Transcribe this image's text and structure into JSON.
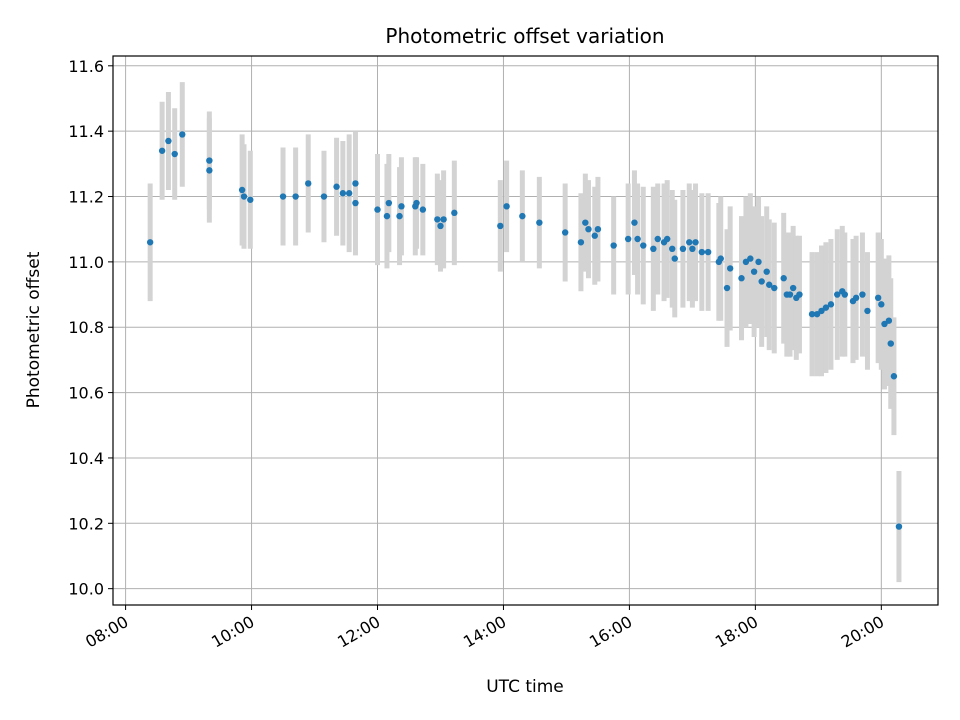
{
  "chart_data": {
    "type": "scatter",
    "title": "Photometric offset variation",
    "xlabel": "UTC time",
    "ylabel": "Photometric offset",
    "xlim": [
      7.8,
      20.9
    ],
    "ylim": [
      9.95,
      11.63
    ],
    "xticks": [
      8,
      10,
      12,
      14,
      16,
      18,
      20
    ],
    "xtick_labels": [
      "08:00",
      "10:00",
      "12:00",
      "14:00",
      "16:00",
      "18:00",
      "20:00"
    ],
    "yticks": [
      10.0,
      10.2,
      10.4,
      10.6,
      10.8,
      11.0,
      11.2,
      11.4,
      11.6
    ],
    "ytick_labels": [
      "10.0",
      "10.2",
      "10.4",
      "10.6",
      "10.8",
      "11.0",
      "11.2",
      "11.4",
      "11.6"
    ],
    "grid": true,
    "marker_color": "#1f77b4",
    "errorbar_color": "#d3d3d3",
    "series": [
      {
        "points": [
          [
            8.39,
            11.06,
            0.18
          ],
          [
            8.58,
            11.34,
            0.15
          ],
          [
            8.68,
            11.37,
            0.15
          ],
          [
            8.78,
            11.33,
            0.14
          ],
          [
            8.9,
            11.39,
            0.16
          ],
          [
            9.33,
            11.31,
            0.15
          ],
          [
            9.33,
            11.28,
            0.16
          ],
          [
            9.85,
            11.22,
            0.17
          ],
          [
            9.88,
            11.2,
            0.16
          ],
          [
            9.98,
            11.19,
            0.15
          ],
          [
            10.5,
            11.2,
            0.15
          ],
          [
            10.7,
            11.2,
            0.15
          ],
          [
            10.9,
            11.24,
            0.15
          ],
          [
            11.15,
            11.2,
            0.14
          ],
          [
            11.35,
            11.23,
            0.15
          ],
          [
            11.45,
            11.21,
            0.16
          ],
          [
            11.55,
            11.21,
            0.18
          ],
          [
            11.65,
            11.18,
            0.16
          ],
          [
            11.65,
            11.24,
            0.16
          ],
          [
            12.0,
            11.16,
            0.17
          ],
          [
            12.15,
            11.14,
            0.16
          ],
          [
            12.18,
            11.18,
            0.15
          ],
          [
            12.35,
            11.14,
            0.15
          ],
          [
            12.38,
            11.17,
            0.15
          ],
          [
            12.6,
            11.17,
            0.15
          ],
          [
            12.62,
            11.18,
            0.14
          ],
          [
            12.72,
            11.16,
            0.14
          ],
          [
            12.95,
            11.13,
            0.14
          ],
          [
            13.0,
            11.11,
            0.14
          ],
          [
            13.05,
            11.13,
            0.15
          ],
          [
            13.22,
            11.15,
            0.16
          ],
          [
            13.95,
            11.11,
            0.14
          ],
          [
            14.05,
            11.17,
            0.14
          ],
          [
            14.3,
            11.14,
            0.14
          ],
          [
            14.57,
            11.12,
            0.14
          ],
          [
            14.98,
            11.09,
            0.15
          ],
          [
            15.23,
            11.06,
            0.15
          ],
          [
            15.3,
            11.12,
            0.15
          ],
          [
            15.35,
            11.1,
            0.15
          ],
          [
            15.45,
            11.08,
            0.15
          ],
          [
            15.5,
            11.1,
            0.16
          ],
          [
            15.75,
            11.05,
            0.15
          ],
          [
            15.98,
            11.07,
            0.17
          ],
          [
            16.08,
            11.12,
            0.16
          ],
          [
            16.13,
            11.07,
            0.17
          ],
          [
            16.22,
            11.05,
            0.18
          ],
          [
            16.38,
            11.04,
            0.19
          ],
          [
            16.45,
            11.07,
            0.17
          ],
          [
            16.55,
            11.06,
            0.18
          ],
          [
            16.6,
            11.07,
            0.18
          ],
          [
            16.68,
            11.04,
            0.18
          ],
          [
            16.72,
            11.01,
            0.18
          ],
          [
            16.85,
            11.04,
            0.18
          ],
          [
            16.95,
            11.06,
            0.18
          ],
          [
            17.0,
            11.04,
            0.18
          ],
          [
            17.05,
            11.06,
            0.18
          ],
          [
            17.15,
            11.03,
            0.18
          ],
          [
            17.25,
            11.03,
            0.18
          ],
          [
            17.42,
            11.0,
            0.18
          ],
          [
            17.45,
            11.01,
            0.19
          ],
          [
            17.55,
            10.92,
            0.18
          ],
          [
            17.6,
            10.98,
            0.19
          ],
          [
            17.78,
            10.95,
            0.19
          ],
          [
            17.85,
            11.0,
            0.2
          ],
          [
            17.92,
            11.01,
            0.2
          ],
          [
            17.98,
            10.97,
            0.2
          ],
          [
            18.05,
            11.0,
            0.2
          ],
          [
            18.1,
            10.94,
            0.2
          ],
          [
            18.18,
            10.97,
            0.2
          ],
          [
            18.22,
            10.93,
            0.2
          ],
          [
            18.3,
            10.92,
            0.2
          ],
          [
            18.45,
            10.95,
            0.2
          ],
          [
            18.5,
            10.9,
            0.19
          ],
          [
            18.55,
            10.9,
            0.19
          ],
          [
            18.6,
            10.92,
            0.19
          ],
          [
            18.65,
            10.89,
            0.19
          ],
          [
            18.7,
            10.9,
            0.18
          ],
          [
            18.9,
            10.84,
            0.19
          ],
          [
            18.98,
            10.84,
            0.19
          ],
          [
            19.05,
            10.85,
            0.2
          ],
          [
            19.12,
            10.86,
            0.2
          ],
          [
            19.2,
            10.87,
            0.2
          ],
          [
            19.3,
            10.9,
            0.2
          ],
          [
            19.38,
            10.91,
            0.2
          ],
          [
            19.42,
            10.9,
            0.19
          ],
          [
            19.55,
            10.88,
            0.19
          ],
          [
            19.6,
            10.89,
            0.19
          ],
          [
            19.7,
            10.9,
            0.19
          ],
          [
            19.78,
            10.85,
            0.18
          ],
          [
            19.95,
            10.89,
            0.2
          ],
          [
            20.0,
            10.87,
            0.2
          ],
          [
            20.05,
            10.81,
            0.2
          ],
          [
            20.12,
            10.82,
            0.2
          ],
          [
            20.15,
            10.75,
            0.2
          ],
          [
            20.2,
            10.65,
            0.18
          ],
          [
            20.28,
            10.19,
            0.17
          ]
        ]
      }
    ]
  }
}
